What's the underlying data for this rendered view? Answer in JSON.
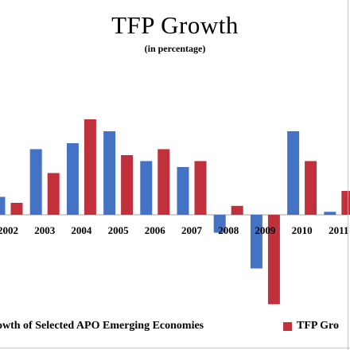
{
  "chart_data": {
    "type": "bar",
    "title": "TFP Growth",
    "subtitle": "(in percentage)",
    "categories": [
      "2002",
      "2003",
      "2004",
      "2005",
      "2006",
      "2007",
      "2008",
      "2009",
      "2010",
      "2011"
    ],
    "series": [
      {
        "name": "TFP Growth of Selected APO Emerging Economies",
        "color": "#4472c4",
        "values": [
          0.3,
          1.1,
          1.2,
          1.4,
          0.9,
          0.8,
          -0.3,
          -0.9,
          1.4,
          0.05
        ]
      },
      {
        "name": "TFP Growth",
        "color": "#c0313b",
        "values": [
          0.2,
          0.7,
          1.6,
          1.0,
          1.1,
          0.9,
          0.15,
          -1.5,
          0.9,
          0.4
        ]
      }
    ],
    "ylim": [
      -1.7,
      1.85
    ],
    "legend_position": "bottom",
    "grid": false
  },
  "legend": {
    "item1": "owth of Selected APO Emerging Economies",
    "item2": "TFP Gro"
  }
}
